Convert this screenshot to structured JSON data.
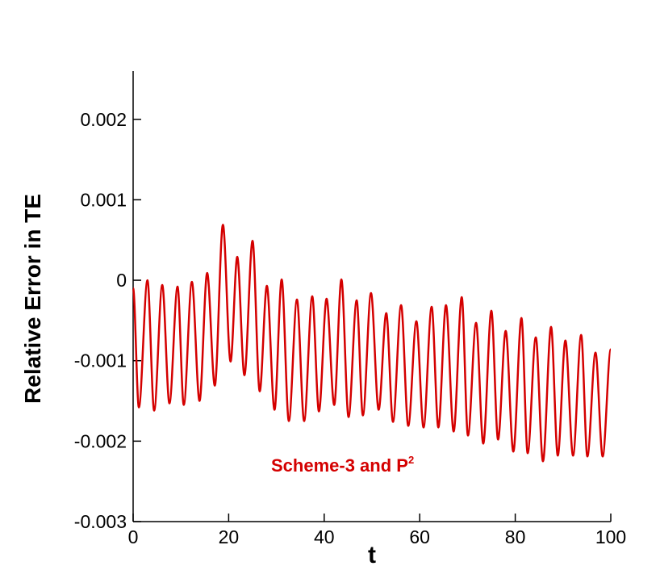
{
  "chart_data": {
    "type": "line",
    "x_label": "t",
    "y_label": "Relative Error in TE",
    "annotation": "Scheme-3 and P",
    "annotation_sup": "2",
    "xlim": [
      0,
      100
    ],
    "xticks": [
      0,
      20,
      40,
      60,
      80,
      100
    ],
    "ylim": [
      -0.003,
      0.0026
    ],
    "yticks": [
      -0.003,
      -0.002,
      -0.001,
      0,
      0.001,
      0.002
    ],
    "series": [
      {
        "color": "#d40000",
        "x": [
          0,
          1.2,
          3.0,
          4.4,
          6.1,
          7.6,
          9.3,
          10.6,
          12.3,
          13.9,
          15.5,
          17.1,
          18.8,
          20.4,
          21.8,
          23.3,
          25.0,
          26.5,
          28.0,
          29.6,
          31.1,
          32.6,
          34.3,
          35.8,
          37.5,
          38.9,
          40.5,
          42.1,
          43.6,
          45.1,
          46.8,
          48.1,
          49.8,
          51.4,
          53.0,
          54.4,
          56.1,
          57.6,
          59.3,
          60.8,
          62.5,
          63.9,
          65.5,
          67.1,
          68.8,
          70.1,
          71.8,
          73.3,
          75.0,
          76.4,
          78.0,
          79.6,
          81.3,
          82.6,
          84.3,
          85.8,
          87.5,
          88.9,
          90.5,
          92.1,
          93.8,
          95.1,
          96.8,
          98.3,
          100
        ],
        "values": [
          -0.0001,
          -0.00158,
          0,
          -0.00162,
          -6e-05,
          -0.00153,
          -8e-05,
          -0.00155,
          -2e-05,
          -0.0015,
          9e-05,
          -0.00131,
          0.00069,
          -0.00101,
          0.00029,
          -0.00118,
          0.00049,
          -0.00138,
          -7e-05,
          -0.00161,
          1e-05,
          -0.00175,
          -0.00024,
          -0.00175,
          -0.0002,
          -0.00163,
          -0.00023,
          -0.00155,
          1e-05,
          -0.0017,
          -0.00025,
          -0.00168,
          -0.00016,
          -0.00161,
          -0.00041,
          -0.00176,
          -0.00031,
          -0.00181,
          -0.00051,
          -0.00183,
          -0.00033,
          -0.00183,
          -0.00031,
          -0.00188,
          -0.00021,
          -0.00193,
          -0.00053,
          -0.00203,
          -0.00038,
          -0.00198,
          -0.00063,
          -0.00213,
          -0.00047,
          -0.00215,
          -0.00071,
          -0.00225,
          -0.00058,
          -0.00218,
          -0.00075,
          -0.00218,
          -0.00068,
          -0.00219,
          -0.0009,
          -0.00219,
          -0.00086
        ]
      }
    ]
  }
}
